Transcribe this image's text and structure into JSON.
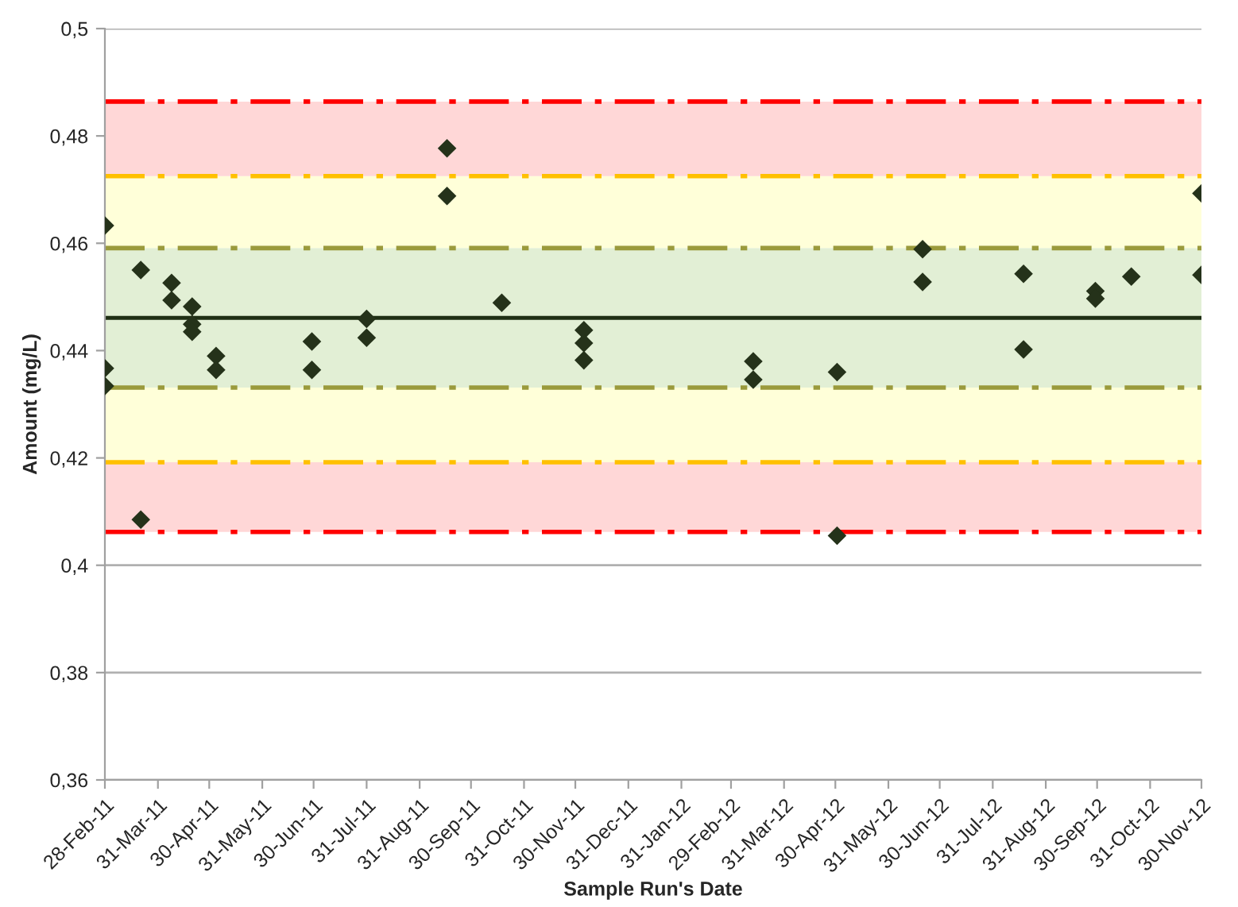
{
  "chart_data": {
    "type": "scatter",
    "xlabel": "Sample Run's Date",
    "ylabel": "Amount (mg/L)",
    "x": [
      "2011-02-28",
      "2011-02-28",
      "2011-02-28",
      "2011-03-21",
      "2011-03-21",
      "2011-04-08",
      "2011-04-08",
      "2011-04-20",
      "2011-04-20",
      "2011-04-20",
      "2011-05-04",
      "2011-05-04",
      "2011-06-29",
      "2011-06-29",
      "2011-07-31",
      "2011-07-31",
      "2011-09-16",
      "2011-09-16",
      "2011-10-18",
      "2011-12-05",
      "2011-12-05",
      "2011-12-05",
      "2012-03-13",
      "2012-03-13",
      "2012-05-01",
      "2012-05-01",
      "2012-06-20",
      "2012-06-20",
      "2012-08-18",
      "2012-08-18",
      "2012-09-29",
      "2012-09-29",
      "2012-10-20",
      "2012-11-30",
      "2012-11-30"
    ],
    "series": [
      {
        "color": "#25321a",
        "values": [
          0.4633,
          0.4367,
          0.4334,
          0.455,
          0.4085,
          0.4526,
          0.4494,
          0.4482,
          0.4449,
          0.4435,
          0.439,
          0.4364,
          0.4417,
          0.4364,
          0.4459,
          0.4424,
          0.4777,
          0.4688,
          0.4489,
          0.4438,
          0.4414,
          0.4382,
          0.438,
          0.4346,
          0.436,
          0.4055,
          0.4589,
          0.4528,
          0.4543,
          0.4402,
          0.4511,
          0.4497,
          0.4538,
          0.4693,
          0.4541
        ]
      }
    ],
    "marker": "diamond",
    "xlim": [
      "2011-02-28",
      "2012-11-30"
    ],
    "xticks": [
      {
        "value": "2011-02-28",
        "label": "28-Feb-11"
      },
      {
        "value": "2011-03-31",
        "label": "31-Mar-11"
      },
      {
        "value": "2011-04-30",
        "label": "30-Apr-11"
      },
      {
        "value": "2011-05-31",
        "label": "31-May-11"
      },
      {
        "value": "2011-06-30",
        "label": "30-Jun-11"
      },
      {
        "value": "2011-07-31",
        "label": "31-Jul-11"
      },
      {
        "value": "2011-08-31",
        "label": "31-Aug-11"
      },
      {
        "value": "2011-09-30",
        "label": "30-Sep-11"
      },
      {
        "value": "2011-10-31",
        "label": "31-Oct-11"
      },
      {
        "value": "2011-11-30",
        "label": "30-Nov-11"
      },
      {
        "value": "2011-12-31",
        "label": "31-Dec-11"
      },
      {
        "value": "2012-01-31",
        "label": "31-Jan-12"
      },
      {
        "value": "2012-02-29",
        "label": "29-Feb-12"
      },
      {
        "value": "2012-03-31",
        "label": "31-Mar-12"
      },
      {
        "value": "2012-04-30",
        "label": "30-Apr-12"
      },
      {
        "value": "2012-05-31",
        "label": "31-May-12"
      },
      {
        "value": "2012-06-30",
        "label": "30-Jun-12"
      },
      {
        "value": "2012-07-31",
        "label": "31-Jul-12"
      },
      {
        "value": "2012-08-31",
        "label": "31-Aug-12"
      },
      {
        "value": "2012-09-30",
        "label": "30-Sep-12"
      },
      {
        "value": "2012-10-31",
        "label": "31-Oct-12"
      },
      {
        "value": "2012-11-30",
        "label": "30-Nov-12"
      }
    ],
    "ylim": [
      0.36,
      0.5
    ],
    "yticks": [
      {
        "value": 0.36,
        "label": "0,36"
      },
      {
        "value": 0.38,
        "label": "0,38"
      },
      {
        "value": 0.4,
        "label": "0,4"
      },
      {
        "value": 0.42,
        "label": "0,42"
      },
      {
        "value": 0.44,
        "label": "0,44"
      },
      {
        "value": 0.46,
        "label": "0,46"
      },
      {
        "value": 0.48,
        "label": "0,48"
      },
      {
        "value": 0.5,
        "label": "0,5"
      }
    ],
    "grid": "y",
    "bands": [
      {
        "axis": "y",
        "from": 0.4062,
        "to": 0.4192,
        "color": "#ffd7d7"
      },
      {
        "axis": "y",
        "from": 0.4192,
        "to": 0.4331,
        "color": "#ffffd9"
      },
      {
        "axis": "y",
        "from": 0.4331,
        "to": 0.4591,
        "color": "#e2efd5"
      },
      {
        "axis": "y",
        "from": 0.4591,
        "to": 0.4725,
        "color": "#ffffd9"
      },
      {
        "axis": "y",
        "from": 0.4725,
        "to": 0.4864,
        "color": "#ffd7d7"
      }
    ],
    "ref_lines": [
      {
        "axis": "y",
        "value": 0.4864,
        "color": "#ff0000",
        "line_style": "dashed"
      },
      {
        "axis": "y",
        "value": 0.4725,
        "color": "#ffc000",
        "line_style": "dashed"
      },
      {
        "axis": "y",
        "value": 0.4591,
        "color": "#9a9a3c",
        "line_style": "dashed"
      },
      {
        "axis": "y",
        "value": 0.4461,
        "color": "#1f2f14",
        "line_style": "solid"
      },
      {
        "axis": "y",
        "value": 0.4331,
        "color": "#9a9a3c",
        "line_style": "dashed"
      },
      {
        "axis": "y",
        "value": 0.4192,
        "color": "#ffc000",
        "line_style": "dashed"
      },
      {
        "axis": "y",
        "value": 0.4062,
        "color": "#ff0000",
        "line_style": "dashed"
      }
    ]
  }
}
